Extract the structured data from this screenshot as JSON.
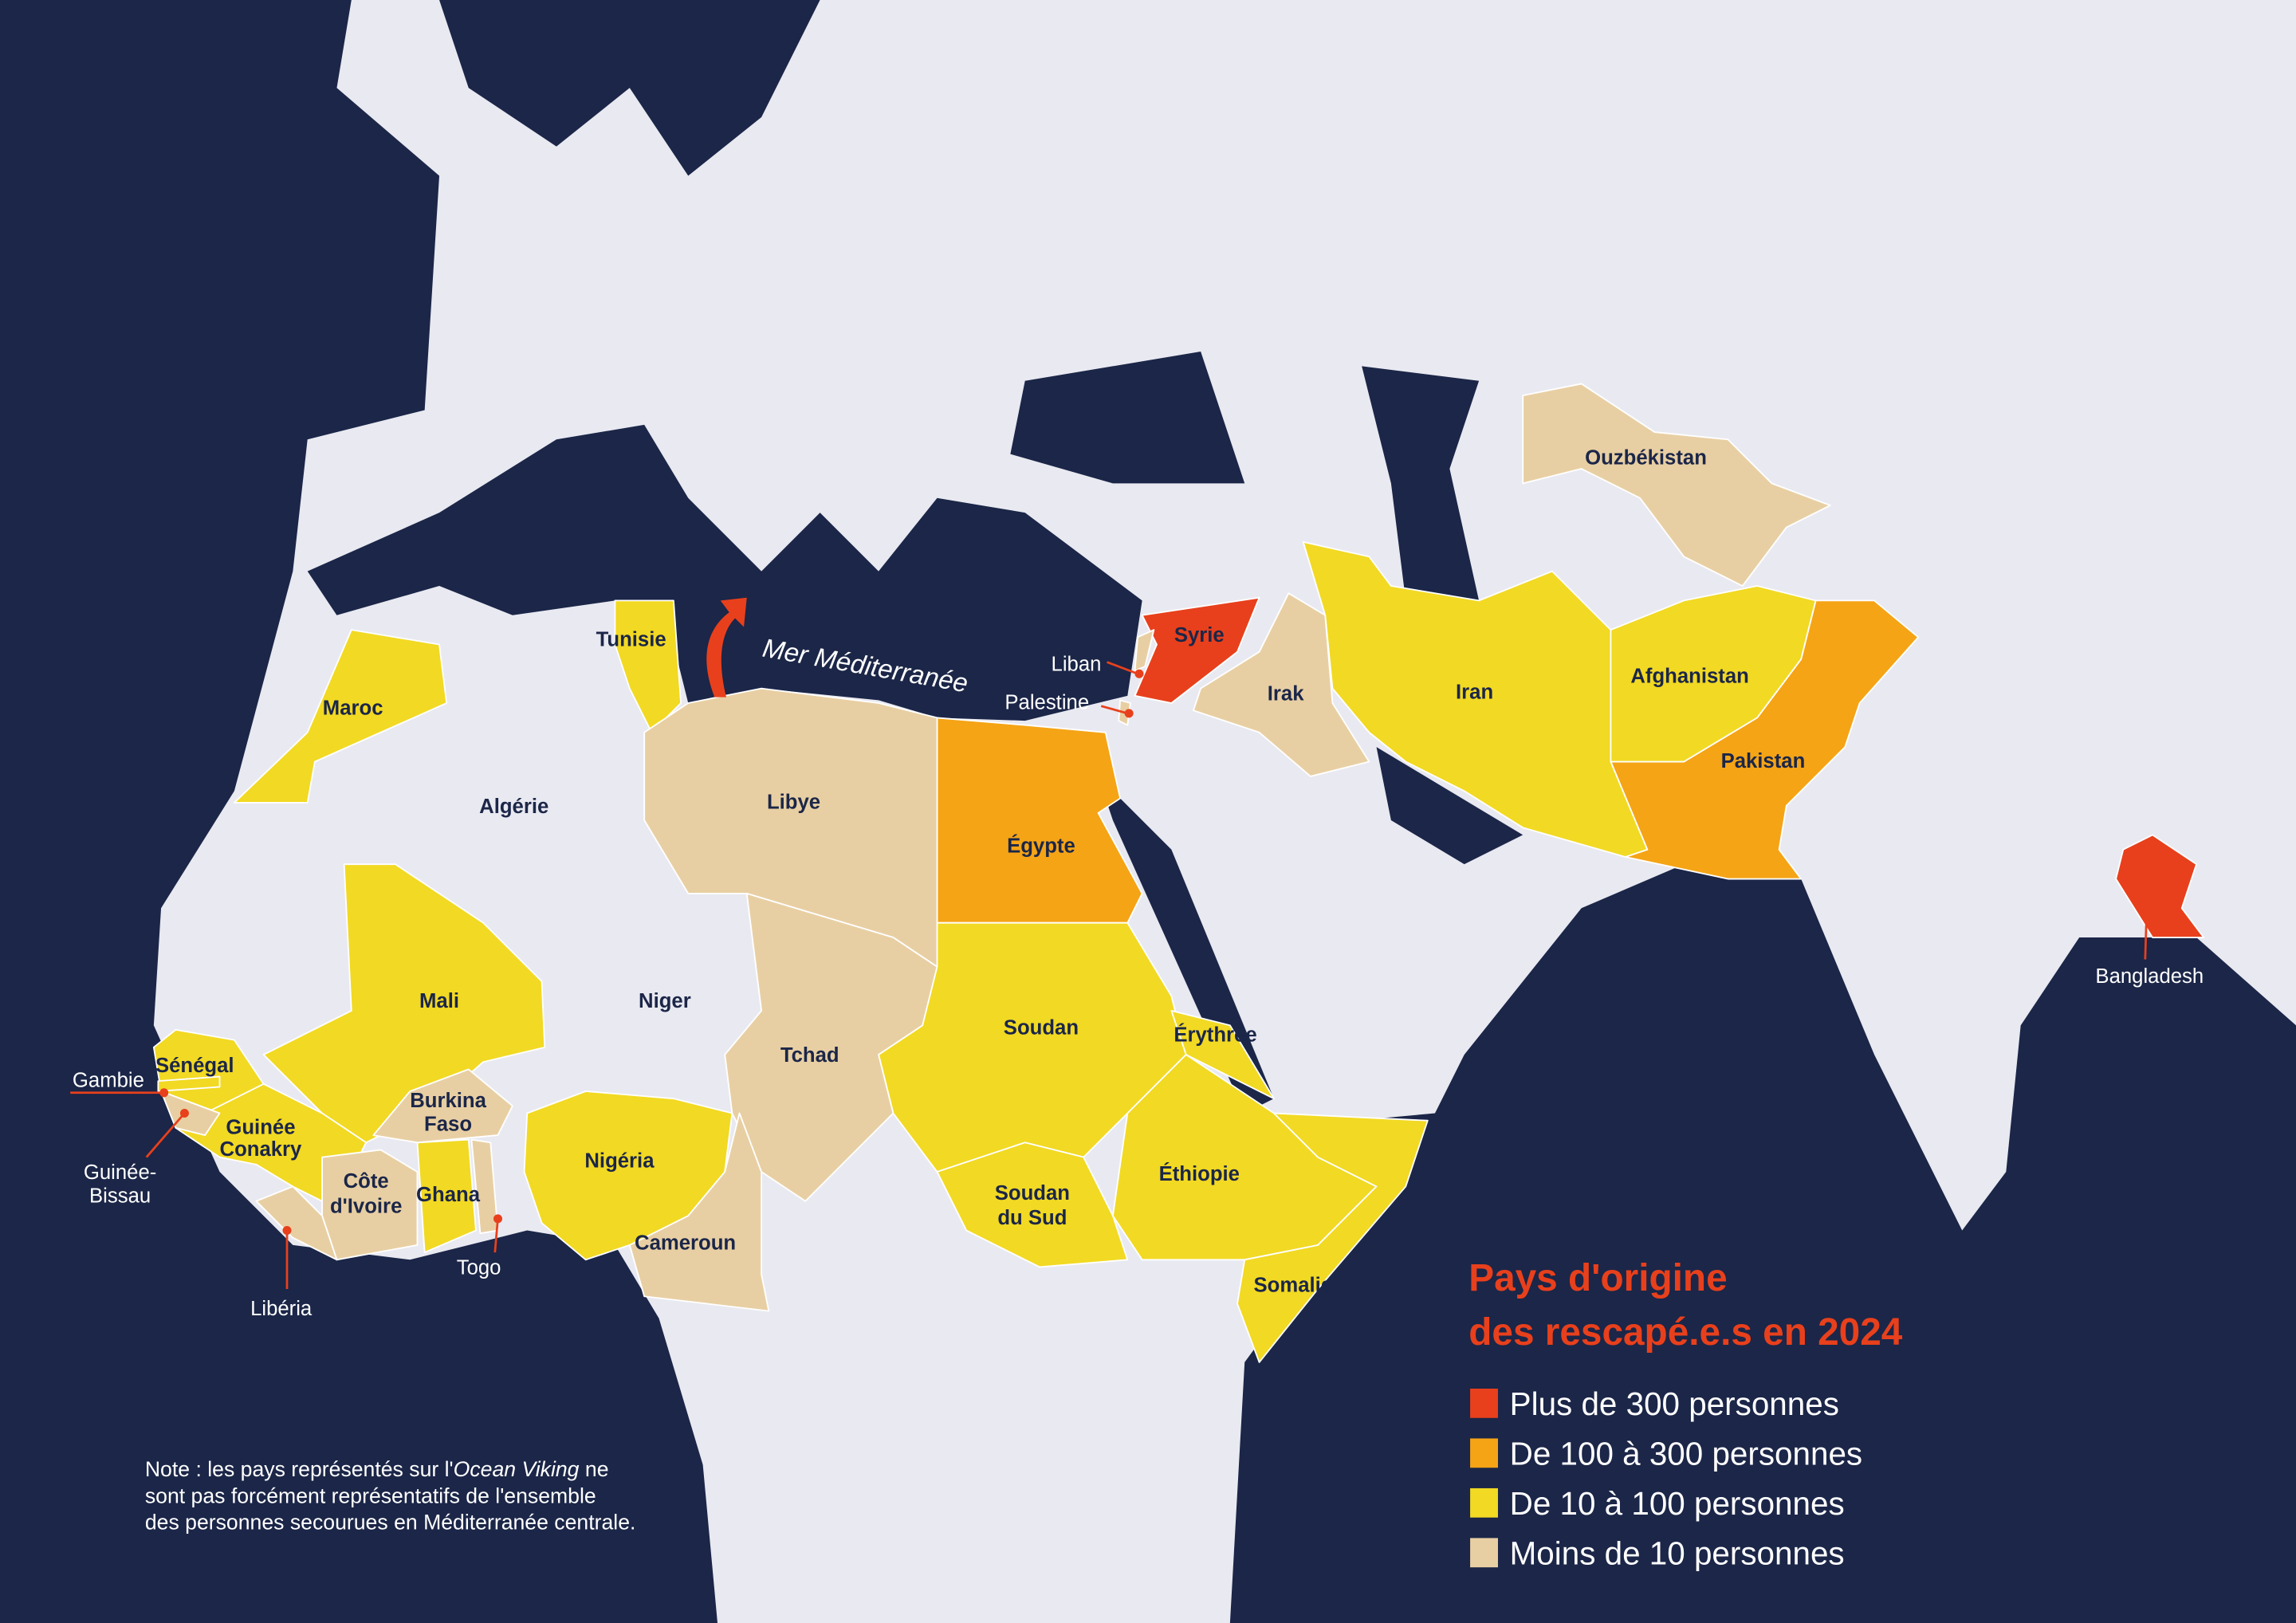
{
  "colors": {
    "sea": "#1b2648",
    "land": "#e9e9f1",
    "accent": "#e8401c"
  },
  "legend": {
    "title_line1": "Pays d'origine",
    "title_line2": "des rescapé.e.s en 2024",
    "items": [
      {
        "label": "Plus de 300 personnes",
        "color": "#e8401c"
      },
      {
        "label": "De 100 à 300 personnes",
        "color": "#f5a416"
      },
      {
        "label": "De 10 à 100 personnes",
        "color": "#f2d923"
      },
      {
        "label": "Moins de 10 personnes",
        "color": "#e8cfa3"
      }
    ]
  },
  "sea_label": "Mer Méditerranée",
  "countries": [
    {
      "name": "Syrie",
      "category": 0
    },
    {
      "name": "Bangladesh",
      "category": 0
    },
    {
      "name": "Égypte",
      "category": 1
    },
    {
      "name": "Pakistan",
      "category": 1
    },
    {
      "name": "Tunisie",
      "category": 2
    },
    {
      "name": "Maroc",
      "category": 2
    },
    {
      "name": "Mali",
      "category": 2
    },
    {
      "name": "Sénégal",
      "category": 2
    },
    {
      "name": "Gambie",
      "category": 2
    },
    {
      "name": "Guinée Conakry",
      "category": 2
    },
    {
      "name": "Ghana",
      "category": 2
    },
    {
      "name": "Nigéria",
      "category": 2
    },
    {
      "name": "Soudan",
      "category": 2
    },
    {
      "name": "Soudan du Sud",
      "category": 2
    },
    {
      "name": "Érythrée",
      "category": 2
    },
    {
      "name": "Éthiopie",
      "category": 2
    },
    {
      "name": "Somalie",
      "category": 2
    },
    {
      "name": "Iran",
      "category": 2
    },
    {
      "name": "Afghanistan",
      "category": 2
    },
    {
      "name": "Libye",
      "category": 3
    },
    {
      "name": "Tchad",
      "category": 3
    },
    {
      "name": "Cameroun",
      "category": 3
    },
    {
      "name": "Burkina Faso",
      "category": 3
    },
    {
      "name": "Côte d'Ivoire",
      "category": 3
    },
    {
      "name": "Guinée-Bissau",
      "category": 3
    },
    {
      "name": "Libéria",
      "category": 3
    },
    {
      "name": "Togo",
      "category": 3
    },
    {
      "name": "Liban",
      "category": 3
    },
    {
      "name": "Palestine",
      "category": 3
    },
    {
      "name": "Irak",
      "category": 3
    },
    {
      "name": "Ouzbékistan",
      "category": 3
    },
    {
      "name": "Algérie",
      "category": null
    },
    {
      "name": "Niger",
      "category": null
    }
  ],
  "label_parts": {
    "guinee": [
      "Guinée",
      "Conakry"
    ],
    "soudan_sud": [
      "Soudan",
      "du Sud"
    ],
    "burkina": [
      "Burkina",
      "Faso"
    ],
    "cote": [
      "Côte",
      "d'Ivoire"
    ],
    "bissau": [
      "Guinée-",
      "Bissau"
    ]
  },
  "note": {
    "line1_a": "Note : les pays représentés sur l'",
    "line1_italic": "Ocean Viking",
    "line1_b": " ne",
    "line2": "sont pas forcément représentatifs de l'ensemble",
    "line3": "des personnes secourues en Méditerranée centrale."
  }
}
